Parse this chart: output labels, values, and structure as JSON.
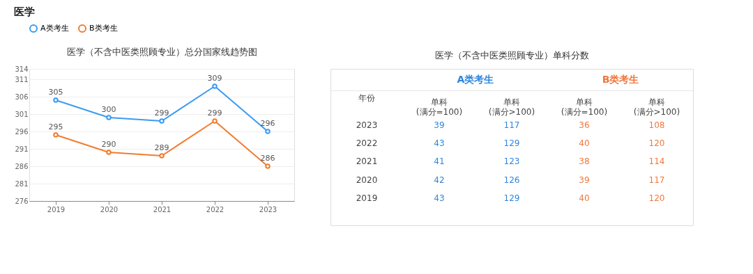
{
  "chart_data": [
    {
      "type": "line",
      "title": "医学（不含中医类照顾专业）总分国家线趋势图",
      "annotations": [
        "医学"
      ],
      "categories": [
        "2019",
        "2020",
        "2021",
        "2022",
        "2023"
      ],
      "series": [
        {
          "name": "A类考生",
          "color": "#3a9bf0",
          "values": [
            305,
            300,
            299,
            309,
            296
          ]
        },
        {
          "name": "B类考生",
          "color": "#f07c2f",
          "values": [
            295,
            290,
            289,
            299,
            286
          ]
        }
      ],
      "ylim": [
        276,
        314
      ],
      "yticks": [
        276,
        281,
        286,
        291,
        296,
        301,
        306,
        311,
        314
      ],
      "grid": "y",
      "legend": "top",
      "marker": "circle",
      "line_style": "solid",
      "data_labels": true
    },
    {
      "type": "heatmap",
      "title": "医学（不含中医类照顾专业）单科分数",
      "ylabel": "年份",
      "annotations": [
        "A类考生",
        "B类考生"
      ],
      "categories": [
        "单科\n(满分=100)",
        "单科\n(满分>100)",
        "单科\n(满分=100)",
        "单科\n(满分>100)"
      ],
      "y_categories": [
        "2023",
        "2022",
        "2021",
        "2020",
        "2019"
      ],
      "cells": [
        [
          39,
          117,
          36,
          108
        ],
        [
          43,
          129,
          40,
          120
        ],
        [
          41,
          123,
          38,
          114
        ],
        [
          42,
          126,
          39,
          117
        ],
        [
          43,
          129,
          40,
          120
        ]
      ],
      "colors": [
        "#2e86de",
        "#2e86de",
        "#f0783c",
        "#f0783c"
      ],
      "data_labels": true
    }
  ]
}
